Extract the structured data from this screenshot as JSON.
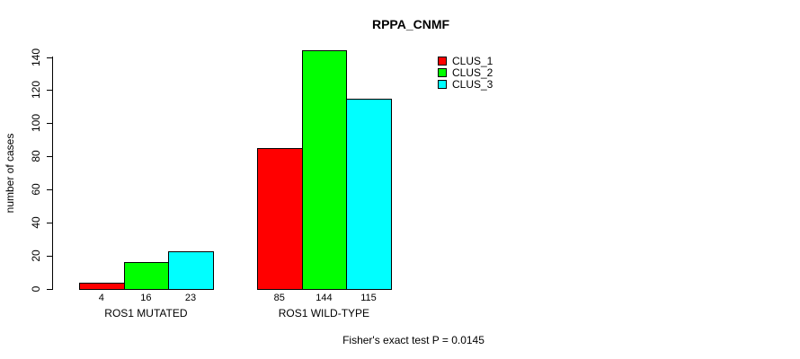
{
  "title": "RPPA_CNMF",
  "footer": "Fisher's exact test P = 0.0145",
  "chart_data": {
    "type": "bar",
    "title": "RPPA_CNMF",
    "xlabel": "",
    "ylabel": "number of cases",
    "categories": [
      "ROS1 MUTATED",
      "ROS1 WILD-TYPE"
    ],
    "series": [
      {
        "name": "CLUS_1",
        "color": "#ff0000",
        "values": [
          4,
          85
        ]
      },
      {
        "name": "CLUS_2",
        "color": "#00ff00",
        "values": [
          16,
          144
        ]
      },
      {
        "name": "CLUS_3",
        "color": "#00ffff",
        "values": [
          23,
          115
        ]
      }
    ],
    "ylim": [
      0,
      140
    ],
    "yticks": [
      0,
      20,
      40,
      60,
      80,
      100,
      120,
      140
    ],
    "bar_value_labels_shown": true,
    "grid": false,
    "bar_border_color": "#000000",
    "legend": {
      "position": "top-right",
      "entries": [
        "CLUS_1",
        "CLUS_2",
        "CLUS_3"
      ]
    },
    "annotation": "Fisher's exact test P = 0.0145"
  }
}
